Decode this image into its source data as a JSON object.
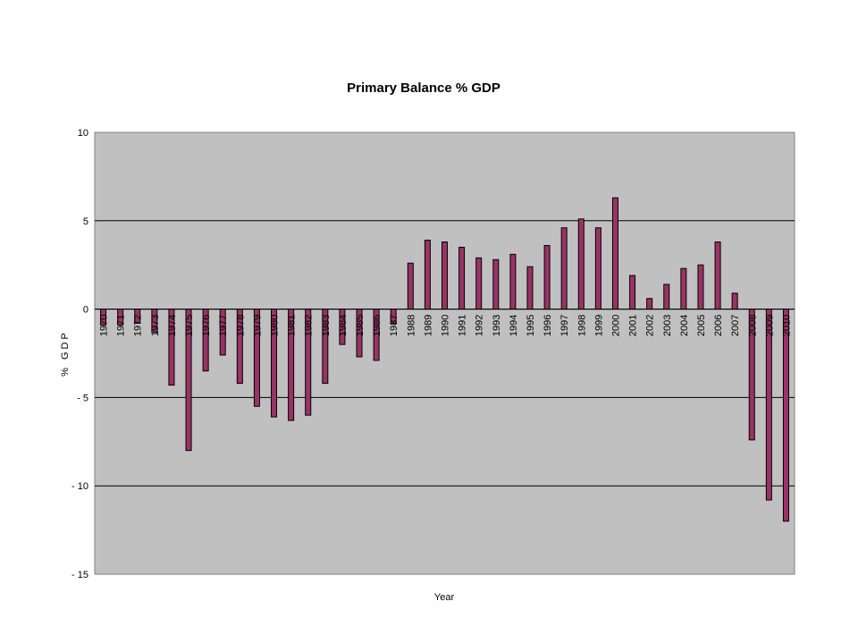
{
  "chart_data": {
    "type": "bar",
    "title": "Primary Balance % GDP",
    "xlabel": "Year",
    "ylabel": "% GDP",
    "ylim": [
      -15,
      10
    ],
    "yticks": [
      10,
      5,
      0,
      -5,
      -10,
      -15
    ],
    "grid": true,
    "legend": "none",
    "plot_background": "#c0c0c0",
    "bar_color": "#993366",
    "categories": [
      "1970",
      "1971",
      "1972",
      "1973",
      "1974",
      "1975",
      "1976",
      "1977",
      "1978",
      "1979",
      "1980",
      "1981",
      "1982",
      "1983",
      "1984",
      "1985",
      "1986",
      "1987",
      "1988",
      "1989",
      "1990",
      "1991",
      "1992",
      "1993",
      "1994",
      "1995",
      "1996",
      "1997",
      "1998",
      "1999",
      "2000",
      "2001",
      "2002",
      "2003",
      "2004",
      "2005",
      "2006",
      "2007",
      "2008",
      "2009",
      "2010"
    ],
    "values": [
      -0.9,
      -0.9,
      -0.8,
      -1.3,
      -4.3,
      -8.0,
      -3.5,
      -2.6,
      -4.2,
      -5.5,
      -6.1,
      -6.3,
      -6.0,
      -4.2,
      -2.0,
      -2.7,
      -2.9,
      -0.8,
      2.6,
      3.9,
      3.8,
      3.5,
      2.9,
      2.8,
      3.1,
      2.4,
      3.6,
      4.6,
      5.1,
      4.6,
      6.3,
      1.9,
      0.6,
      1.4,
      2.3,
      2.5,
      3.8,
      0.9,
      -7.4,
      -10.8,
      -12.0
    ]
  }
}
